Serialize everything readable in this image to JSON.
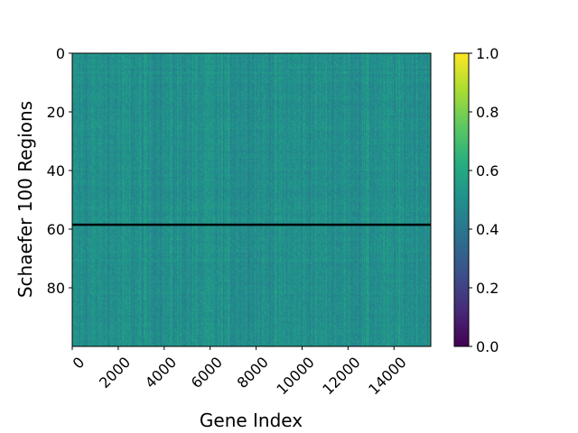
{
  "chart_data": {
    "type": "heatmap",
    "title": "",
    "xlabel": "Gene Index",
    "ylabel": "Schaefer 100 Regions",
    "x_range": [
      0,
      15600
    ],
    "y_range": [
      0,
      100
    ],
    "x_ticks": [
      0,
      2000,
      4000,
      6000,
      8000,
      10000,
      12000,
      14000
    ],
    "x_tick_labels": [
      "0",
      "2000",
      "4000",
      "6000",
      "8000",
      "10000",
      "12000",
      "14000"
    ],
    "y_ticks": [
      0,
      20,
      40,
      60,
      80
    ],
    "y_tick_labels": [
      "0",
      "20",
      "40",
      "60",
      "80"
    ],
    "n_rows": 100,
    "n_cols": 15600,
    "colormap": "viridis",
    "value_range": [
      0,
      1
    ],
    "mean_value": 0.5,
    "divider_line_y": 58.5,
    "divider_line_color": "#000000",
    "colorbar": {
      "ticks": [
        0.0,
        0.2,
        0.4,
        0.6,
        0.8,
        1.0
      ],
      "tick_labels": [
        "0.0",
        "0.2",
        "0.4",
        "0.6",
        "0.8",
        "1.0"
      ]
    }
  }
}
